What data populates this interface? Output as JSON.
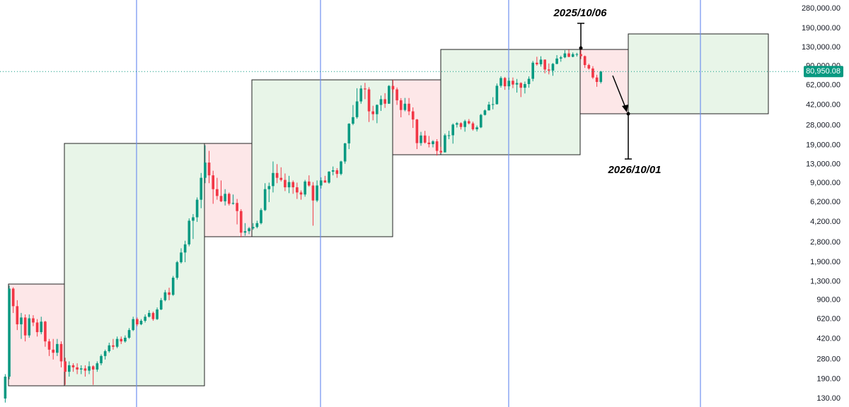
{
  "chart_data": {
    "type": "candlestick",
    "log_scale": true,
    "ylim": [
      110,
      331000
    ],
    "yticks": [
      {
        "value": 280000,
        "label": "280,000.00"
      },
      {
        "value": 190000,
        "label": "190,000.00"
      },
      {
        "value": 130000,
        "label": "130,000.00"
      },
      {
        "value": 90000,
        "label": "90,000.00"
      },
      {
        "value": 62000,
        "label": "62,000.00"
      },
      {
        "value": 42000,
        "label": "42,000.00"
      },
      {
        "value": 28000,
        "label": "28,000.00"
      },
      {
        "value": 19000,
        "label": "19,000.00"
      },
      {
        "value": 13000,
        "label": "13,000.00"
      },
      {
        "value": 9000,
        "label": "9,000.00"
      },
      {
        "value": 6200,
        "label": "6,200.00"
      },
      {
        "value": 4200,
        "label": "4,200.00"
      },
      {
        "value": 2800,
        "label": "2,800.00"
      },
      {
        "value": 1900,
        "label": "1,900.00"
      },
      {
        "value": 1300,
        "label": "1,300.00"
      },
      {
        "value": 900,
        "label": "900.00"
      },
      {
        "value": 620,
        "label": "620.00"
      },
      {
        "value": 420,
        "label": "420.00"
      },
      {
        "value": 280,
        "label": "280.00"
      },
      {
        "value": 190,
        "label": "190.00"
      },
      {
        "value": 130,
        "label": "130.00"
      }
    ],
    "up_color": "#089981",
    "down_color": "#f23645",
    "open": [
      130,
      200,
      1130,
      800,
      560,
      640,
      450,
      630,
      580,
      480,
      590,
      400,
      340,
      320,
      380,
      270,
      220,
      250,
      240,
      230,
      235,
      225,
      245,
      230,
      260,
      300,
      330,
      370,
      360,
      420,
      400,
      430,
      500,
      620,
      560,
      600,
      650,
      700,
      620,
      750,
      900,
      1050,
      1000,
      1400,
      1900,
      2300,
      2700,
      4300,
      4600,
      6500,
      10000,
      13500,
      10500,
      8000,
      7000,
      6300,
      7300,
      6000,
      6100,
      5200,
      3400,
      3500,
      3700,
      3800,
      4100,
      5300,
      8000,
      8500,
      11000,
      10000,
      9600,
      8300,
      9200,
      8300,
      7500,
      7200,
      9300,
      8600,
      6400,
      8600,
      9500,
      9100,
      11300,
      11600,
      10800,
      13800,
      19700,
      29000,
      33000,
      45000,
      58000,
      57000,
      37000,
      35000,
      42000,
      47000,
      43000,
      61000,
      57000,
      46000,
      38000,
      43000,
      37000,
      31500,
      19800,
      23000,
      20000,
      19400,
      20500,
      17000,
      16500,
      23100,
      23100,
      28500,
      29300,
      27200,
      30500,
      29200,
      26000,
      27000,
      34500,
      37700,
      42300,
      42600,
      61200,
      71300,
      60600,
      67500,
      62700,
      64600,
      58900,
      63300,
      70200,
      96400,
      93400,
      102400,
      84300,
      82500,
      94200,
      104600,
      107100,
      115700,
      108200,
      114000,
      114100,
      109600,
      92000,
      86000,
      72000,
      66000
    ],
    "high": [
      210,
      1200,
      1160,
      900,
      700,
      680,
      680,
      670,
      620,
      650,
      600,
      420,
      420,
      420,
      400,
      290,
      270,
      260,
      260,
      250,
      250,
      270,
      250,
      270,
      310,
      340,
      390,
      420,
      440,
      440,
      450,
      520,
      650,
      640,
      620,
      680,
      740,
      720,
      780,
      940,
      1100,
      1150,
      1450,
      1950,
      2500,
      2900,
      4500,
      4900,
      6800,
      11000,
      19000,
      17000,
      11500,
      10000,
      9500,
      8000,
      7500,
      7200,
      6600,
      5400,
      4100,
      3800,
      4100,
      4300,
      5500,
      9000,
      9100,
      13800,
      13100,
      12300,
      10900,
      10400,
      9500,
      9100,
      7800,
      9600,
      10500,
      9200,
      9500,
      10100,
      10400,
      11400,
      12500,
      12100,
      14000,
      19900,
      29300,
      41900,
      58300,
      61700,
      64800,
      59500,
      41300,
      42400,
      50500,
      52900,
      62000,
      68800,
      59200,
      48000,
      48200,
      48100,
      40000,
      31900,
      24700,
      25200,
      22800,
      21000,
      21400,
      18400,
      23900,
      25200,
      29200,
      30000,
      29800,
      31400,
      31800,
      30200,
      28000,
      35200,
      38400,
      44700,
      48900,
      64000,
      73800,
      72800,
      71900,
      72000,
      70000,
      65600,
      66500,
      73600,
      99800,
      108300,
      109400,
      102800,
      95000,
      95800,
      111900,
      110500,
      123200,
      124500,
      117900,
      117000,
      126000,
      111000,
      94500,
      90000,
      76000,
      82000
    ],
    "low": [
      120,
      190,
      700,
      500,
      420,
      400,
      430,
      540,
      440,
      460,
      360,
      300,
      280,
      300,
      240,
      170,
      200,
      220,
      210,
      210,
      200,
      210,
      170,
      220,
      250,
      280,
      320,
      340,
      350,
      380,
      390,
      420,
      490,
      540,
      550,
      580,
      640,
      600,
      610,
      740,
      880,
      900,
      980,
      1350,
      1850,
      1900,
      2600,
      3000,
      4200,
      5500,
      9000,
      9000,
      6000,
      6500,
      6200,
      5800,
      5800,
      5900,
      4000,
      3100,
      3200,
      3300,
      3600,
      3700,
      4000,
      5200,
      6200,
      7500,
      9000,
      9300,
      7700,
      7400,
      7300,
      6600,
      6500,
      6900,
      8400,
      3900,
      6200,
      8100,
      9100,
      8900,
      10500,
      10000,
      10500,
      13200,
      17600,
      28200,
      32000,
      43000,
      47000,
      30000,
      31000,
      29300,
      37300,
      39600,
      42900,
      53200,
      42000,
      32900,
      37000,
      34300,
      26700,
      17600,
      18800,
      19600,
      18200,
      18200,
      15500,
      16200,
      16500,
      21400,
      19600,
      26900,
      25900,
      24800,
      28600,
      25300,
      24900,
      26600,
      34100,
      37600,
      38500,
      42300,
      59000,
      56500,
      56600,
      58400,
      53500,
      49000,
      52600,
      58900,
      66800,
      90800,
      89200,
      78200,
      76600,
      74500,
      93400,
      98200,
      105300,
      107300,
      107300,
      108600,
      103500,
      87000,
      84000,
      70000,
      60000,
      64000
    ],
    "close": [
      200,
      1130,
      800,
      560,
      640,
      450,
      630,
      580,
      480,
      590,
      400,
      340,
      320,
      380,
      270,
      220,
      250,
      240,
      230,
      235,
      225,
      245,
      230,
      260,
      300,
      330,
      370,
      360,
      420,
      400,
      430,
      500,
      620,
      560,
      600,
      650,
      700,
      620,
      750,
      900,
      1050,
      1000,
      1400,
      1900,
      2300,
      2700,
      4300,
      4600,
      6500,
      10000,
      13500,
      10500,
      8000,
      7000,
      6300,
      7300,
      6000,
      6100,
      5200,
      3400,
      3500,
      3700,
      3800,
      4100,
      5300,
      8000,
      8500,
      11000,
      10000,
      9600,
      8300,
      9200,
      8300,
      7500,
      7200,
      9300,
      8600,
      6400,
      8600,
      9500,
      9100,
      11300,
      11600,
      10800,
      13800,
      19700,
      29000,
      33000,
      45000,
      58000,
      57000,
      37000,
      35000,
      42000,
      47000,
      43000,
      61000,
      57000,
      46000,
      38000,
      43000,
      37000,
      31500,
      19800,
      23000,
      20000,
      19400,
      20500,
      17000,
      16500,
      23100,
      23100,
      28500,
      29300,
      27200,
      30500,
      29200,
      26000,
      27000,
      34500,
      37700,
      42300,
      42600,
      61200,
      71300,
      60600,
      67500,
      62700,
      64600,
      58900,
      63300,
      70200,
      96400,
      93400,
      102400,
      84300,
      82500,
      94200,
      104600,
      107100,
      115700,
      108200,
      114000,
      114100,
      109600,
      92000,
      86000,
      72000,
      66000,
      80950.08
    ],
    "last_price": {
      "value": 80950.08,
      "label": "80,950.08"
    },
    "annotations": [
      "2025/10/06",
      "2026/10/01"
    ]
  }
}
